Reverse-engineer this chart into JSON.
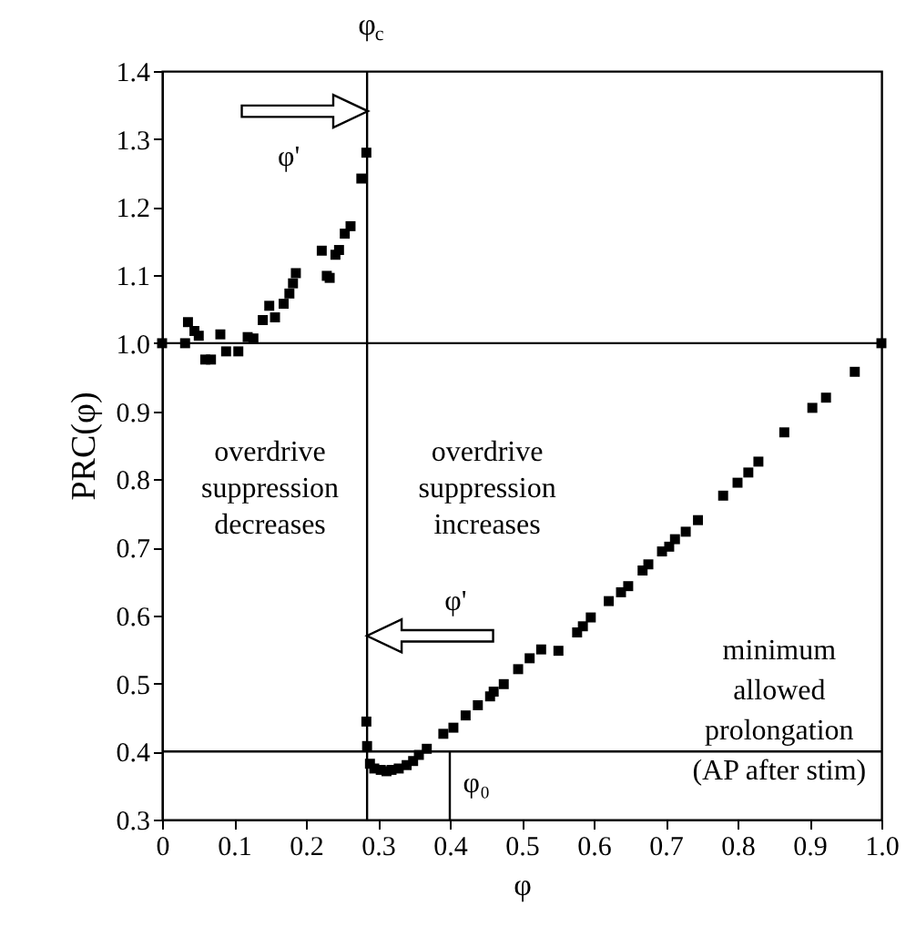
{
  "chart_data": {
    "type": "scatter",
    "xlabel": "φ",
    "ylabel": "PRC(φ)",
    "grid": false,
    "xlim": [
      0,
      1
    ],
    "xticks": [
      0,
      0.1,
      0.2,
      0.3,
      0.4,
      0.5,
      0.6,
      0.7,
      0.8,
      0.9,
      {
        "value": 1,
        "label": "1.0"
      }
    ],
    "ylim": [
      0.3,
      1.4
    ],
    "yticks": [
      0.3,
      0.4,
      0.5,
      0.6,
      0.7,
      0.8,
      0.9,
      {
        "value": 1,
        "label": "1.0"
      },
      1.1,
      1.2,
      1.3,
      1.4
    ],
    "series": [
      {
        "marker": "square",
        "color": "#000000",
        "x": [
          0,
          0.032,
          0.036,
          0.045,
          0.051,
          0.06,
          0.068,
          0.081,
          0.089,
          0.106,
          0.119,
          0.127,
          0.14,
          0.149,
          0.157,
          0.169,
          0.177,
          0.182,
          0.186,
          0.222,
          0.229,
          0.233,
          0.241,
          0.246,
          0.254,
          0.262,
          0.277,
          0.284,
          0.284,
          0.285,
          0.289,
          0.295,
          0.304,
          0.312,
          0.319,
          0.329,
          0.34,
          0.349,
          0.357,
          0.368,
          0.391,
          0.405,
          0.422,
          0.439,
          0.456,
          0.461,
          0.475,
          0.495,
          0.511,
          0.527,
          0.551,
          0.577,
          0.585,
          0.596,
          0.621,
          0.638,
          0.648,
          0.668,
          0.676,
          0.695,
          0.705,
          0.713,
          0.728,
          0.745,
          0.78,
          0.8,
          0.815,
          0.829,
          0.865,
          0.904,
          0.923,
          0.963,
          1.0
        ],
        "values": [
          1.0,
          1.0,
          1.031,
          1.018,
          1.011,
          0.976,
          0.976,
          1.013,
          0.988,
          0.988,
          1.009,
          1.007,
          1.034,
          1.055,
          1.038,
          1.058,
          1.073,
          1.088,
          1.103,
          1.136,
          1.099,
          1.096,
          1.13,
          1.137,
          1.161,
          1.172,
          1.242,
          1.28,
          0.444,
          0.408,
          0.382,
          0.375,
          0.373,
          0.371,
          0.373,
          0.375,
          0.38,
          0.386,
          0.395,
          0.404,
          0.426,
          0.435,
          0.453,
          0.468,
          0.481,
          0.488,
          0.499,
          0.521,
          0.537,
          0.55,
          0.548,
          0.575,
          0.584,
          0.597,
          0.621,
          0.634,
          0.643,
          0.666,
          0.675,
          0.694,
          0.701,
          0.712,
          0.723,
          0.74,
          0.776,
          0.795,
          0.81,
          0.826,
          0.869,
          0.905,
          0.92,
          0.958,
          1.0
        ]
      },
      {
        "type": "line",
        "color": "#000000",
        "x": [
          0.4,
          0.4
        ],
        "values": [
          0.3,
          0.4
        ]
      }
    ],
    "ref_lines": [
      {
        "axis": "y",
        "value": 1.0
      },
      {
        "axis": "y",
        "value": 0.4
      },
      {
        "axis": "x",
        "value": 0.285,
        "label": "φ$_{c}$"
      }
    ],
    "annotations": [
      "φ'",
      "φ'",
      "overdrive\nsuppression\ndecreases",
      "overdrive\nsuppression\nincreases",
      "minimum\nallowed\nprolongation\n(AP after stim)",
      "φ₀"
    ]
  }
}
